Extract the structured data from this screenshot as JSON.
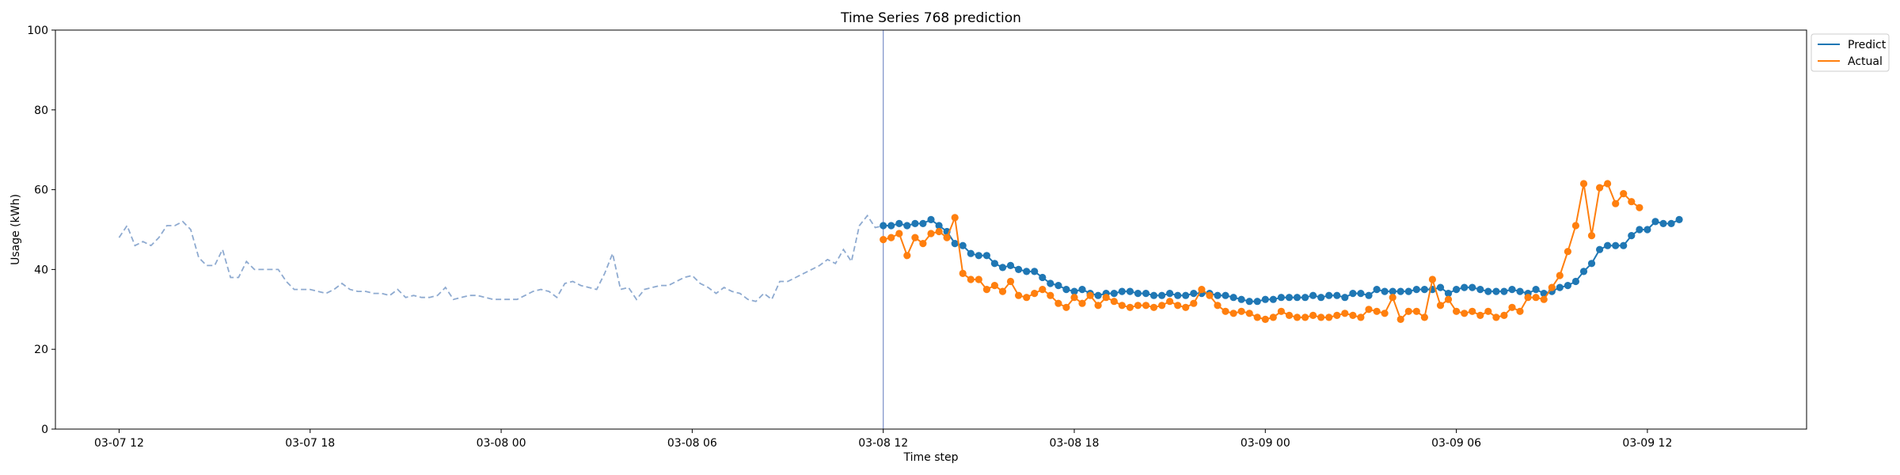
{
  "chart_data": {
    "type": "line",
    "title": "Time Series 768 prediction",
    "xlabel": "Time step",
    "ylabel": "Usage (kWh)",
    "ylim": [
      0,
      100
    ],
    "yticks": [
      "0",
      "20",
      "40",
      "60",
      "80",
      "100"
    ],
    "xlim": [
      -8,
      212
    ],
    "xticks": [
      {
        "x": 0,
        "label": "03-07 12"
      },
      {
        "x": 24,
        "label": "03-07 18"
      },
      {
        "x": 48,
        "label": "03-08 00"
      },
      {
        "x": 72,
        "label": "03-08 06"
      },
      {
        "x": 96,
        "label": "03-08 12"
      },
      {
        "x": 120,
        "label": "03-08 18"
      },
      {
        "x": 144,
        "label": "03-09 00"
      },
      {
        "x": 168,
        "label": "03-09 06"
      },
      {
        "x": 192,
        "label": "03-09 12"
      }
    ],
    "vline_x": 96,
    "legend": {
      "position": "upper-right"
    },
    "history": {
      "color": "#8eaad0",
      "x_start": 0,
      "values": [
        48,
        51,
        46,
        47,
        46,
        48,
        51,
        51,
        52,
        50,
        43,
        41,
        41,
        45,
        38,
        38,
        42,
        40,
        40,
        40,
        40,
        37,
        35,
        35,
        35,
        34.5,
        34,
        35,
        36.5,
        35,
        34.5,
        34.5,
        34,
        34,
        33.5,
        35,
        33,
        33.5,
        33,
        33,
        33.5,
        35.5,
        32.5,
        33,
        33.5,
        33.5,
        33,
        32.5,
        32.5,
        32.5,
        32.5,
        33.5,
        34.5,
        35,
        34.5,
        33,
        36.5,
        37,
        36,
        35.5,
        35,
        39,
        44,
        35,
        35.5,
        32.5,
        35,
        35.5,
        36,
        36,
        37,
        38,
        38.5,
        36.5,
        35.5,
        34,
        35.5,
        34.5,
        34,
        32.5,
        32,
        34,
        32.5,
        37,
        37,
        38,
        39,
        40,
        41,
        42.5,
        41.5,
        45,
        42,
        51,
        53.5,
        50.5,
        51
      ]
    },
    "series": [
      {
        "name": "Predict",
        "color": "#1f77b4",
        "x_start": 96,
        "values": [
          51,
          51,
          51.5,
          51,
          51.5,
          51.5,
          52.5,
          51,
          49.5,
          46.5,
          46,
          44,
          43.5,
          43.5,
          41.5,
          40.5,
          41,
          40,
          39.5,
          39.5,
          38,
          36.5,
          36,
          35,
          34.5,
          35,
          34,
          33.5,
          34,
          34,
          34.5,
          34.5,
          34,
          34,
          33.5,
          33.5,
          34,
          33.5,
          33.5,
          34,
          34,
          34,
          33.5,
          33.5,
          33,
          32.5,
          32,
          32,
          32.5,
          32.5,
          33,
          33,
          33,
          33,
          33.5,
          33,
          33.5,
          33.5,
          33,
          34,
          34,
          33.5,
          35,
          34.5,
          34.5,
          34.5,
          34.5,
          35,
          35,
          35,
          35.5,
          34,
          35,
          35.5,
          35.5,
          35,
          34.5,
          34.5,
          34.5,
          35,
          34.5,
          34,
          35,
          34,
          34.5,
          35.5,
          36,
          37,
          39.5,
          41.5,
          45,
          46,
          46,
          46,
          48.5,
          50,
          50,
          52,
          51.5,
          51.5,
          52.5
        ]
      },
      {
        "name": "Actual",
        "color": "#ff7f0e",
        "x_start": 96,
        "values": [
          47.5,
          48,
          49,
          43.5,
          48,
          46.5,
          49,
          49.5,
          48,
          53,
          39,
          37.5,
          37.5,
          35,
          36,
          34.5,
          37,
          33.5,
          33,
          34,
          35,
          33.5,
          31.5,
          30.5,
          33,
          31.5,
          33.5,
          31,
          33,
          32,
          31,
          30.5,
          31,
          31,
          30.5,
          31,
          32,
          31,
          30.5,
          31.5,
          35,
          33.5,
          31,
          29.5,
          29,
          29.5,
          29,
          28,
          27.5,
          28,
          29.5,
          28.5,
          28,
          28,
          28.5,
          28,
          28,
          28.5,
          29,
          28.5,
          28,
          30,
          29.5,
          29,
          33,
          27.5,
          29.5,
          29.5,
          28,
          37.5,
          31,
          32.5,
          29.5,
          29,
          29.5,
          28.5,
          29.5,
          28,
          28.5,
          30.5,
          29.5,
          33,
          33,
          32.5,
          35.5,
          38.5,
          44.5,
          51,
          61.5,
          48.5,
          60.5,
          61.5,
          56.5,
          59,
          57,
          55.5
        ]
      }
    ]
  }
}
